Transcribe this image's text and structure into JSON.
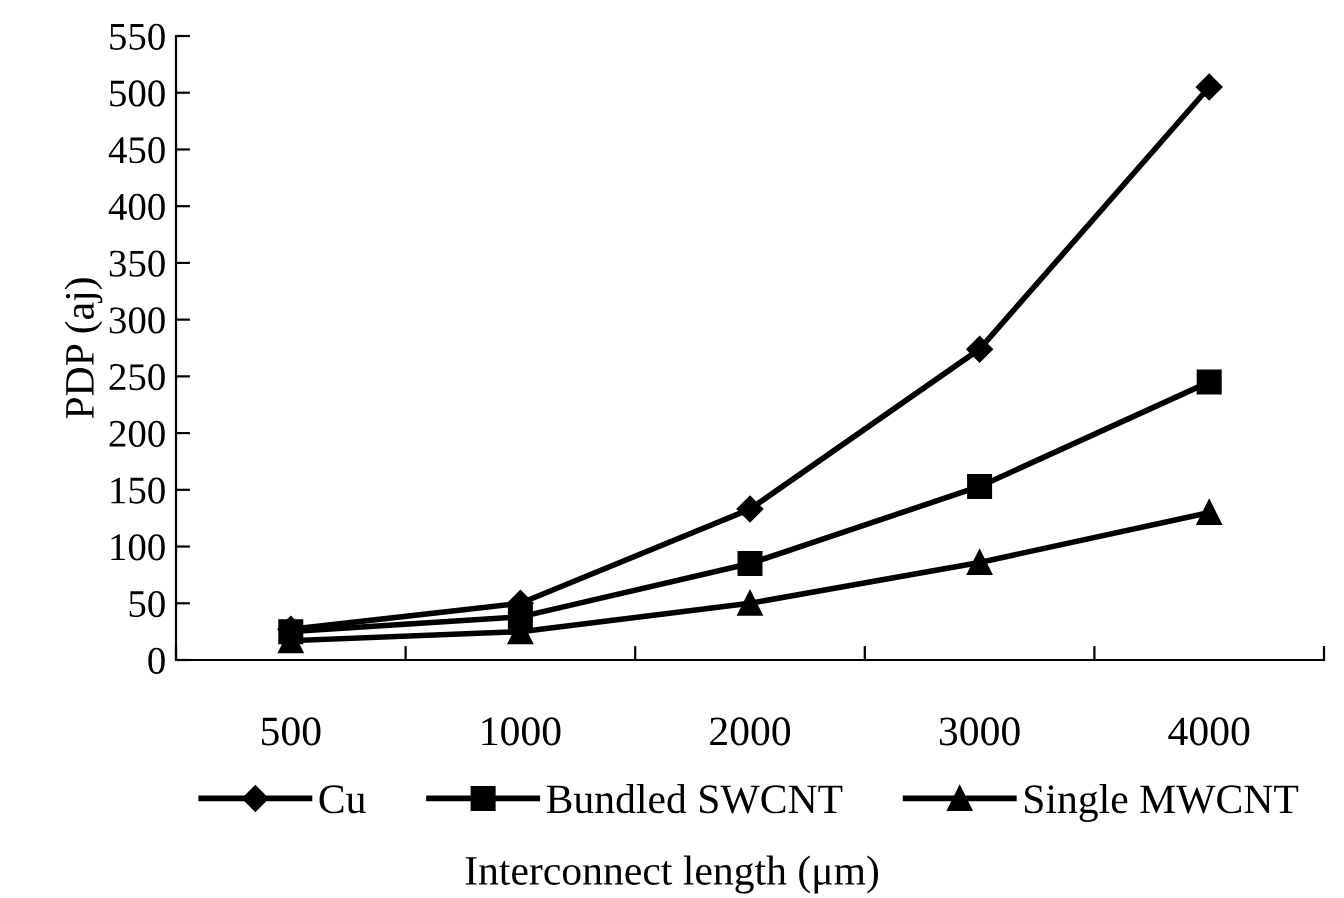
{
  "chart_data": {
    "type": "line",
    "xlabel": "Interconnect length (μm)",
    "ylabel": "PDP (aj)",
    "categories": [
      "500",
      "1000",
      "2000",
      "3000",
      "4000"
    ],
    "series": [
      {
        "name": "Cu",
        "color": "#000000",
        "marker": "diamond",
        "values": [
          27,
          50,
          133,
          274,
          505
        ]
      },
      {
        "name": "Bundled SWCNT",
        "color": "#000000",
        "marker": "square",
        "values": [
          25,
          38,
          85,
          153,
          245
        ]
      },
      {
        "name": "Single MWCNT",
        "color": "#000000",
        "marker": "triangle",
        "values": [
          17,
          25,
          50,
          86,
          130
        ]
      }
    ],
    "ylim": [
      0,
      550
    ],
    "yticks": [
      0,
      50,
      100,
      150,
      200,
      250,
      300,
      350,
      400,
      450,
      500,
      550
    ],
    "grid": false,
    "legend": "bottom",
    "line_style": "solid"
  }
}
